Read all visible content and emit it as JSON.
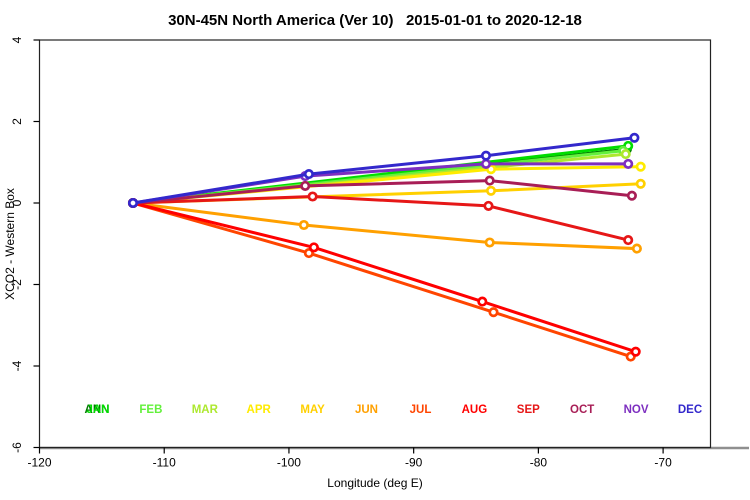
{
  "title": "30N-45N North America (Ver 10)   2015-01-01 to 2020-12-18",
  "chart_data": {
    "type": "line",
    "title": "30N-45N North America (Ver 10)   2015-01-01 to 2020-12-18",
    "xlabel": "Longitude (deg E)",
    "ylabel": "XCO2 - Western Box",
    "xlim": [
      -120,
      -66.2
    ],
    "ylim": [
      -6,
      4
    ],
    "xticks": [
      -120,
      -110,
      -100,
      -90,
      -80,
      -70
    ],
    "yticks": [
      -6,
      -4,
      -2,
      0,
      2,
      4
    ],
    "grid": false,
    "legend_position": "inside-bottom",
    "legend_note": "ANN and JAN labels overlap in the first legend slot",
    "series": [
      {
        "name": "ANN",
        "color": "#007A00",
        "slot": 0,
        "points": [
          [
            -112.5,
            0.0
          ],
          [
            -72.9,
            1.32
          ]
        ]
      },
      {
        "name": "JAN",
        "color": "#00DD00",
        "slot": 0,
        "points": [
          [
            -112.5,
            0.0
          ],
          [
            -72.8,
            1.4
          ]
        ]
      },
      {
        "name": "FEB",
        "color": "#63F03C",
        "slot": 1,
        "points": [
          [
            -112.5,
            0.0
          ],
          [
            -73.2,
            1.28
          ]
        ]
      },
      {
        "name": "MAR",
        "color": "#ADE82F",
        "slot": 2,
        "points": [
          [
            -112.5,
            0.0
          ],
          [
            -73.0,
            1.2
          ]
        ]
      },
      {
        "name": "APR",
        "color": "#FFEB00",
        "slot": 3,
        "points": [
          [
            -112.5,
            0.0
          ],
          [
            -83.8,
            0.83
          ],
          [
            -71.8,
            0.89
          ]
        ]
      },
      {
        "name": "MAY",
        "color": "#FFD000",
        "slot": 4,
        "points": [
          [
            -112.5,
            0.0
          ],
          [
            -83.8,
            0.3
          ],
          [
            -71.8,
            0.47
          ]
        ]
      },
      {
        "name": "JUN",
        "color": "#FFA000",
        "slot": 5,
        "points": [
          [
            -112.5,
            0.0
          ],
          [
            -98.8,
            -0.54
          ],
          [
            -83.9,
            -0.97
          ],
          [
            -72.1,
            -1.12
          ]
        ]
      },
      {
        "name": "JUL",
        "color": "#FF4500",
        "slot": 6,
        "points": [
          [
            -112.5,
            0.0
          ],
          [
            -98.4,
            -1.23
          ],
          [
            -83.6,
            -2.68
          ],
          [
            -72.6,
            -3.77
          ]
        ]
      },
      {
        "name": "AUG",
        "color": "#FF0000",
        "slot": 7,
        "points": [
          [
            -112.5,
            0.0
          ],
          [
            -98.0,
            -1.09
          ],
          [
            -84.5,
            -2.42
          ],
          [
            -72.2,
            -3.65
          ]
        ]
      },
      {
        "name": "SEP",
        "color": "#E61717",
        "slot": 8,
        "points": [
          [
            -112.5,
            0.0
          ],
          [
            -98.1,
            0.16
          ],
          [
            -84.0,
            -0.07
          ],
          [
            -72.8,
            -0.91
          ]
        ]
      },
      {
        "name": "OCT",
        "color": "#A81E56",
        "slot": 9,
        "points": [
          [
            -112.5,
            0.0
          ],
          [
            -98.7,
            0.42
          ],
          [
            -83.9,
            0.55
          ],
          [
            -72.5,
            0.18
          ]
        ]
      },
      {
        "name": "NOV",
        "color": "#7D2FC0",
        "slot": 10,
        "points": [
          [
            -112.5,
            0.0
          ],
          [
            -98.7,
            0.66
          ],
          [
            -84.2,
            0.96
          ],
          [
            -72.8,
            0.96
          ]
        ]
      },
      {
        "name": "DEC",
        "color": "#3328CC",
        "slot": 11,
        "points": [
          [
            -112.5,
            0.0
          ],
          [
            -98.4,
            0.71
          ],
          [
            -84.2,
            1.16
          ],
          [
            -72.3,
            1.6
          ]
        ]
      }
    ]
  }
}
